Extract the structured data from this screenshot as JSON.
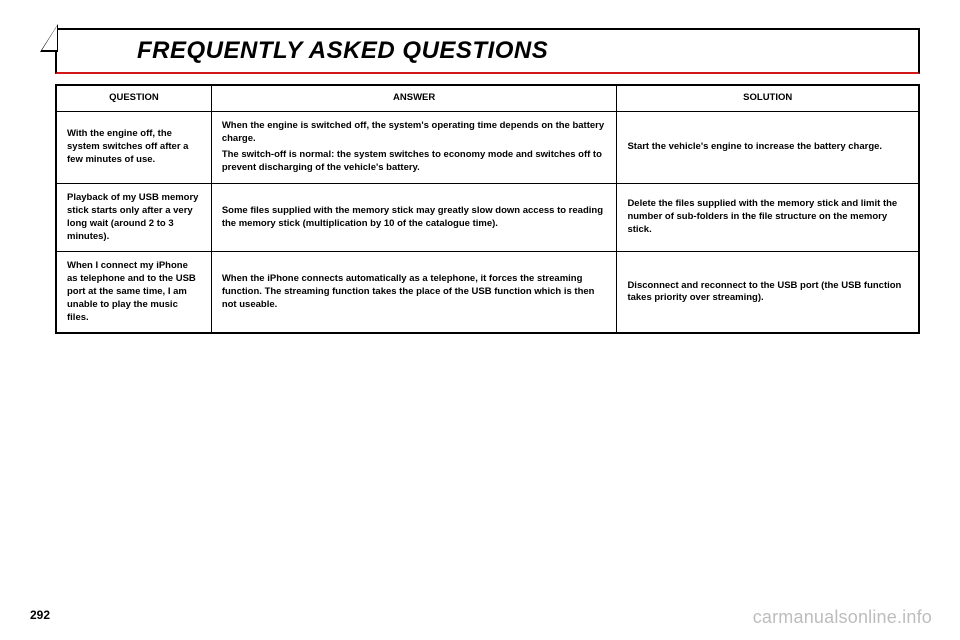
{
  "title": "FREQUENTLY ASKED QUESTIONS",
  "headers": {
    "question": "QUESTION",
    "answer": "ANSWER",
    "solution": "SOLUTION"
  },
  "rows": [
    {
      "question": "With the engine off, the system switches off after a few minutes of use.",
      "answer_p1": "When the engine is switched off, the system's operating time depends on the battery charge.",
      "answer_p2": "The switch-off is normal: the system switches to economy mode and switches off to prevent discharging of the vehicle's battery.",
      "solution": "Start the vehicle's engine to increase the battery charge."
    },
    {
      "question": "Playback of my USB memory stick starts only after a very long wait (around 2 to 3 minutes).",
      "answer_p1": "Some files supplied with the memory stick may greatly slow down access to reading the memory stick (multiplication by 10 of the catalogue time).",
      "answer_p2": "",
      "solution": "Delete the files supplied with the memory stick and limit the number of sub-folders in the file structure on the memory stick."
    },
    {
      "question": "When I connect my iPhone as telephone and to the USB port at the same time, I am unable to play the music files.",
      "answer_p1": "When the iPhone connects automatically as a telephone, it forces the streaming function. The streaming function takes the place of the USB function which is then not useable.",
      "answer_p2": "",
      "solution": "Disconnect and reconnect to the USB port (the USB function takes priority over streaming)."
    }
  ],
  "page_number": "292",
  "watermark": "carmanualsonline.info",
  "colors": {
    "accent_red": "#d31718",
    "watermark_gray": "#bdbdbd"
  }
}
